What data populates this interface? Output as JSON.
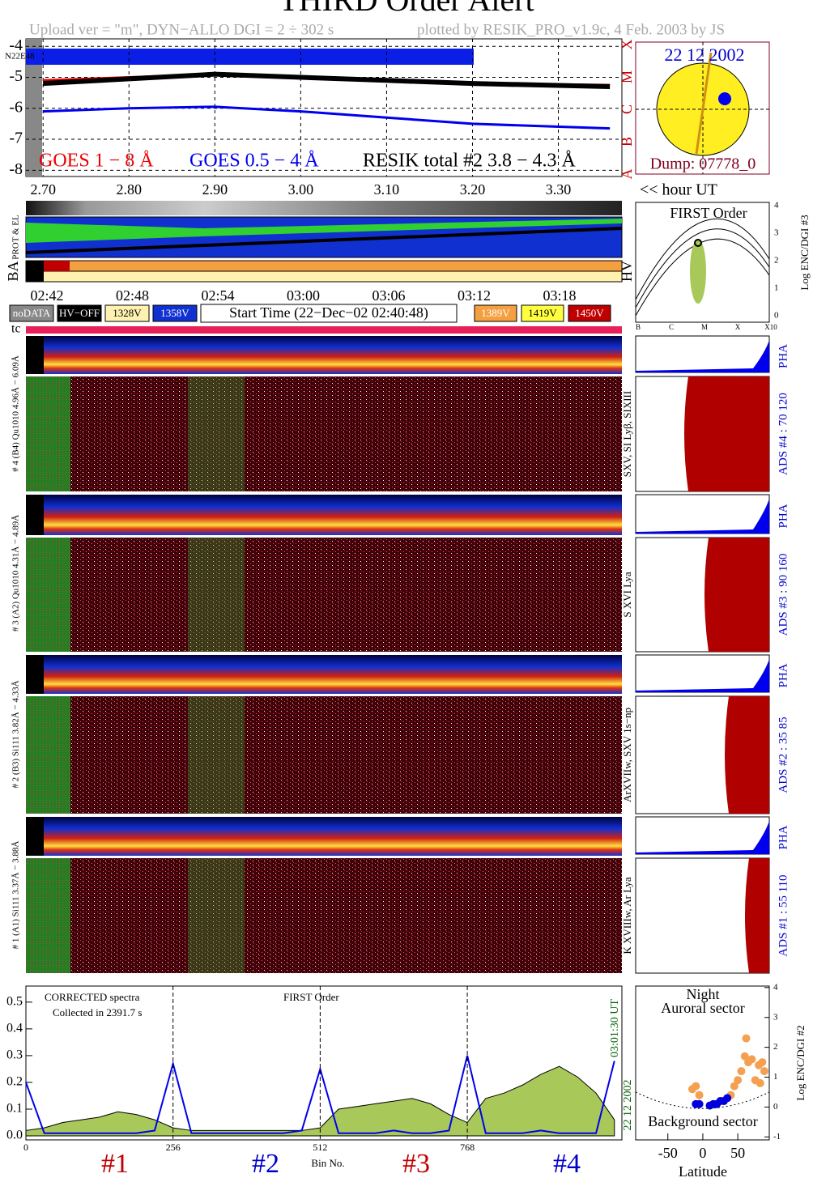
{
  "header": {
    "title": "THIRD Order Alert",
    "upload": "Upload ver = \"m\", DYN−ALLO DGI =   2 ÷ 302 s",
    "plotted": "plotted by RESIK_PRO_v1.9c, 4 Feb. 2003 by JS"
  },
  "sun": {
    "date": "22 12 2002",
    "dump": "Dump: 07778_0",
    "label": "N22E48"
  },
  "timeline": {
    "hour_ut": "<< hour UT",
    "times": [
      "02:42",
      "02:48",
      "02:54",
      "03:00",
      "03:06",
      "03:12",
      "03:18"
    ],
    "prot": "PROT & EL",
    "ba": "BA",
    "hv": "HV",
    "legend": [
      "noDATA",
      "HV−OFF",
      "1328V",
      "1358V"
    ],
    "start": "Start Time (22−Dec−02 02:40:48)",
    "legend2": [
      "1389V",
      "1419V",
      "1450V"
    ],
    "tc": "tc"
  },
  "first_order": {
    "title": "FIRST Order",
    "axis": "Log ENC/DGI #3",
    "classes": [
      "B",
      "C",
      "M",
      "X",
      "X10"
    ],
    "yticks": [
      0,
      1,
      2,
      3,
      4
    ]
  },
  "panels": [
    {
      "label": "# 4 (B4) Qu1010 4.96Å − 6.09Å",
      "element": "SXV, SI Lyβ, SIXIII",
      "ads": "ADS #4 :   70 120",
      "pha": "PHA"
    },
    {
      "label": "# 3 (A2) Qu1010 4.31Å − 4.89Å",
      "element": "S XVI Lya",
      "ads": "ADS #3 :   90 160",
      "pha": "PHA"
    },
    {
      "label": "# 2 (B3) Si111 3.82Å − 4.33Å",
      "element": "ArXVIIw, SXV 1s−np",
      "ads": "ADS #2 :   35  85",
      "pha": "PHA"
    },
    {
      "label": "# 1 (A1) Si111 3.37Å − 3.88Å",
      "element": "K XVIIIw, Ar Lya",
      "ads": "ADS #1 :   55 110",
      "pha": "PHA"
    }
  ],
  "chart_data": [
    {
      "type": "line",
      "x": [
        2.7,
        2.8,
        2.9,
        3.0,
        3.1,
        3.2,
        3.36
      ],
      "series": [
        {
          "name": "GOES 1 − 8 Å",
          "color": "#ee0000",
          "values": [
            -5.1,
            -5.0,
            -4.9,
            -5.0,
            -5.1,
            -5.2,
            -5.25
          ]
        },
        {
          "name": "GOES 0.5 − 4 Å",
          "color": "#0000ee",
          "values": [
            -6.1,
            -6.0,
            -5.95,
            -6.1,
            -6.3,
            -6.5,
            -6.65
          ]
        },
        {
          "name": "RESIK total #2  3.8 − 4.3 Å",
          "color": "#000000",
          "values": [
            -5.2,
            -5.05,
            -4.9,
            -5.0,
            -5.1,
            -5.2,
            -5.3
          ]
        }
      ],
      "xlim": [
        2.68,
        3.374
      ],
      "ylim": [
        -8.2,
        -3.76
      ],
      "xticks": [
        {
          "value": 2.7,
          "label": "2.70"
        },
        {
          "value": 2.8,
          "label": "2.80"
        },
        {
          "value": 2.9,
          "label": "2.90"
        },
        {
          "value": 3.0,
          "label": "3.00"
        },
        {
          "value": 3.1,
          "label": "3.10"
        },
        {
          "value": 3.2,
          "label": "3.20"
        },
        {
          "value": 3.3,
          "label": "3.30"
        }
      ],
      "yticks": [
        -8,
        -7,
        -6,
        -5,
        -4
      ],
      "classes": [
        "X",
        "M",
        "C",
        "B",
        "A"
      ],
      "grid": true
    },
    {
      "type": "area",
      "title": "CORRECTED spectra",
      "subtitle": "Collected in  2391.7 s",
      "note": "FIRST Order",
      "time": "03:01:30 UT",
      "date": "22 12 2002",
      "xlabel": "Bin No.",
      "groups": [
        "#1",
        "#2",
        "#3",
        "#4"
      ],
      "x": [
        0,
        32,
        64,
        96,
        128,
        160,
        192,
        224,
        256,
        288,
        320,
        352,
        384,
        416,
        448,
        480,
        512,
        544,
        576,
        608,
        640,
        672,
        704,
        736,
        768,
        800,
        832,
        864,
        896,
        928,
        960,
        992,
        1024
      ],
      "series": [
        {
          "color": "#a8c85a",
          "values": [
            0.02,
            0.03,
            0.05,
            0.06,
            0.07,
            0.09,
            0.08,
            0.06,
            0.03,
            0.02,
            0.02,
            0.02,
            0.02,
            0.02,
            0.02,
            0.02,
            0.03,
            0.1,
            0.11,
            0.12,
            0.13,
            0.14,
            0.12,
            0.08,
            0.05,
            0.14,
            0.16,
            0.19,
            0.23,
            0.26,
            0.22,
            0.16,
            0.06
          ]
        },
        {
          "color": "#0000ee",
          "values": [
            0.2,
            0.01,
            0.01,
            0.01,
            0.01,
            0.01,
            0.01,
            0.02,
            0.27,
            0.01,
            0.01,
            0.01,
            0.01,
            0.01,
            0.01,
            0.02,
            0.25,
            0.01,
            0.01,
            0.01,
            0.02,
            0.01,
            0.01,
            0.02,
            0.3,
            0.01,
            0.01,
            0.01,
            0.02,
            0.01,
            0.01,
            0.01,
            0.28
          ]
        }
      ],
      "xlim": [
        0,
        1037
      ],
      "ylim": [
        -0.015,
        0.56
      ],
      "xticks": [
        0,
        256,
        512,
        768
      ],
      "yticks": [
        {
          "value": 0,
          "label": "0.0"
        },
        {
          "value": 0.1,
          "label": "0.1"
        },
        {
          "value": 0.2,
          "label": "0.2"
        },
        {
          "value": 0.3,
          "label": "0.3"
        },
        {
          "value": 0.4,
          "label": "0.4"
        },
        {
          "value": 0.5,
          "label": "0.5"
        }
      ]
    },
    {
      "type": "scatter",
      "title": "Night",
      "subtitle": "Auroral sector",
      "note": "Background sector",
      "xlabel": "Latitude",
      "ylabel": "Log ENC/DGI #2",
      "series": [
        {
          "color": "#f4a050",
          "x": [
            -15,
            -10,
            -5,
            40,
            45,
            50,
            55,
            60,
            62,
            65,
            70,
            75,
            80,
            85,
            88,
            82
          ],
          "y": [
            0.6,
            0.7,
            0.4,
            0.4,
            0.7,
            0.9,
            1.2,
            1.7,
            2.3,
            1.5,
            1.6,
            0.9,
            1.4,
            1.5,
            1.2,
            0.8
          ]
        },
        {
          "color": "#0000dd",
          "x": [
            -10,
            -5,
            10,
            15,
            20,
            25,
            30,
            35
          ],
          "y": [
            0.1,
            0.1,
            0.05,
            0.1,
            0.1,
            0.2,
            0.2,
            0.3
          ]
        }
      ],
      "xlim": [
        -96,
        95
      ],
      "ylim": [
        -1.1,
        4.05
      ],
      "xticks": [
        -50,
        0,
        50
      ],
      "yticks": [
        -1,
        0,
        1,
        2,
        3,
        4
      ]
    }
  ]
}
